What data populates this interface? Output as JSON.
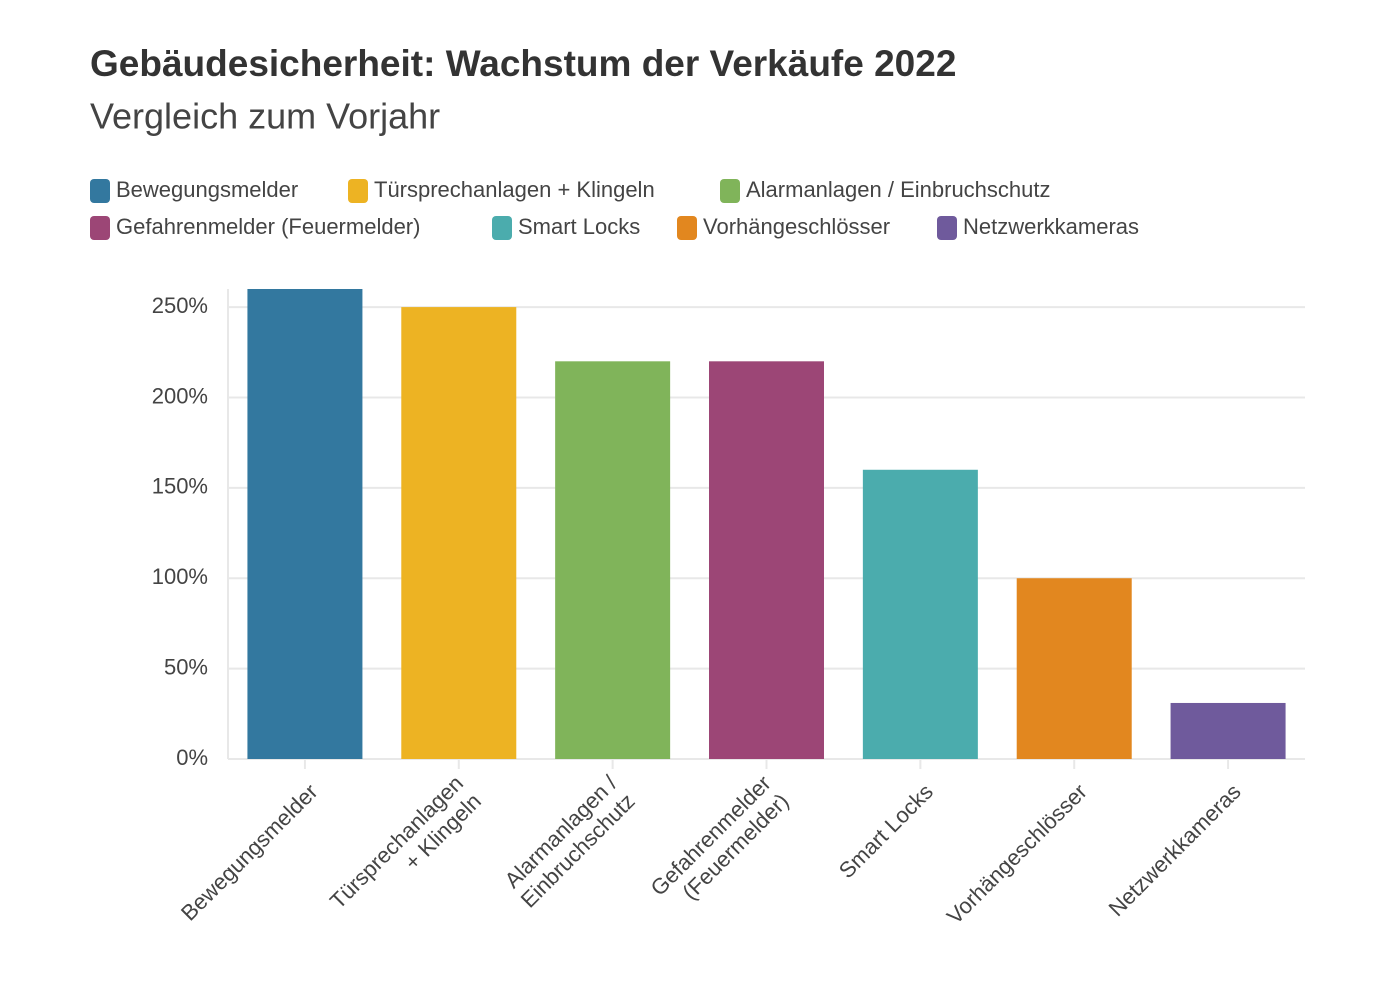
{
  "chart_data": {
    "type": "bar",
    "title": "Gebäudesicherheit: Wachstum der Verkäufe 2022",
    "subtitle": "Vergleich zum Vorjahr",
    "categories": [
      "Bewegungsmelder",
      "Türsprechanlagen + Klingeln",
      "Alarmanlagen / Einbruchschutz",
      "Gefahrenmelder (Feuermelder)",
      "Smart Locks",
      "Vorhängeschlösser",
      "Netzwerkkameras"
    ],
    "values": [
      260,
      250,
      220,
      220,
      160,
      100,
      31
    ],
    "colors": [
      "#33789f",
      "#edb323",
      "#80b45a",
      "#9c4676",
      "#4bacad",
      "#e2871f",
      "#6f5a9c"
    ],
    "ylim": [
      0,
      260
    ],
    "yticks": [
      {
        "value": 0,
        "label": "0%"
      },
      {
        "value": 50,
        "label": "50%"
      },
      {
        "value": 100,
        "label": "100%"
      },
      {
        "value": 150,
        "label": "150%"
      },
      {
        "value": 200,
        "label": "200%"
      },
      {
        "value": 250,
        "label": "250%"
      }
    ],
    "grid": true
  }
}
